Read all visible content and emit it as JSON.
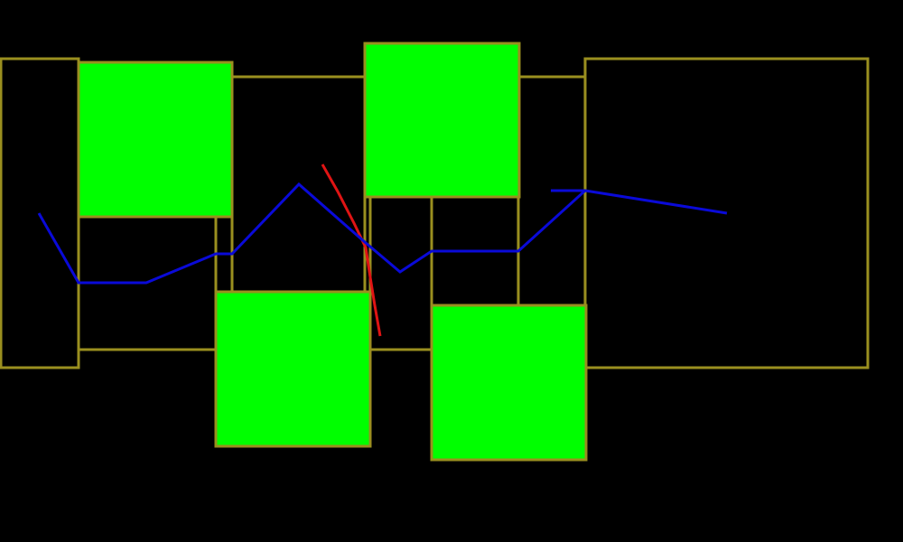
{
  "colors": {
    "background": "#000000",
    "outline": "#9a8f1f",
    "fill": "#00ff00",
    "path_blue": "#0a0ad8",
    "path_red": "#e01414"
  },
  "scene": {
    "outlined_boxes": 9,
    "filled_boxes": 4,
    "blue_path": "polyline",
    "red_path": "polyline"
  }
}
